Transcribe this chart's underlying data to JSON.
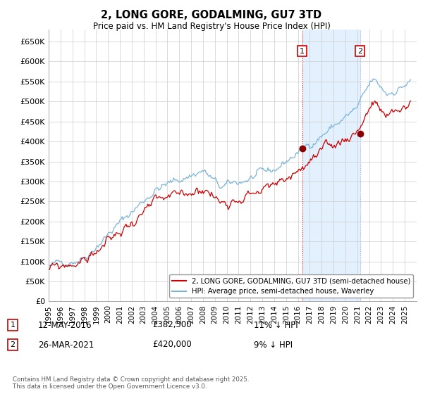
{
  "title": "2, LONG GORE, GODALMING, GU7 3TD",
  "subtitle": "Price paid vs. HM Land Registry's House Price Index (HPI)",
  "ylim": [
    0,
    680000
  ],
  "yticks": [
    0,
    50000,
    100000,
    150000,
    200000,
    250000,
    300000,
    350000,
    400000,
    450000,
    500000,
    550000,
    600000,
    650000
  ],
  "ytick_labels": [
    "£0",
    "£50K",
    "£100K",
    "£150K",
    "£200K",
    "£250K",
    "£300K",
    "£350K",
    "£400K",
    "£450K",
    "£500K",
    "£550K",
    "£600K",
    "£650K"
  ],
  "hpi_color": "#7ab4d8",
  "price_color": "#cc0000",
  "shade_color": "#ddeeff",
  "transaction1": {
    "date": "12-MAY-2016",
    "price": 382500,
    "hpi_diff": "11% ↓ HPI",
    "label": "1",
    "x_year": 2016.36
  },
  "transaction2": {
    "date": "26-MAR-2021",
    "price": 420000,
    "hpi_diff": "9% ↓ HPI",
    "label": "2",
    "x_year": 2021.23
  },
  "legend_entry1": "2, LONG GORE, GODALMING, GU7 3TD (semi-detached house)",
  "legend_entry2": "HPI: Average price, semi-detached house, Waverley",
  "footer": "Contains HM Land Registry data © Crown copyright and database right 2025.\nThis data is licensed under the Open Government Licence v3.0.",
  "background_color": "#ffffff",
  "grid_color": "#cccccc",
  "xlim_start": 1995,
  "xlim_end": 2026
}
